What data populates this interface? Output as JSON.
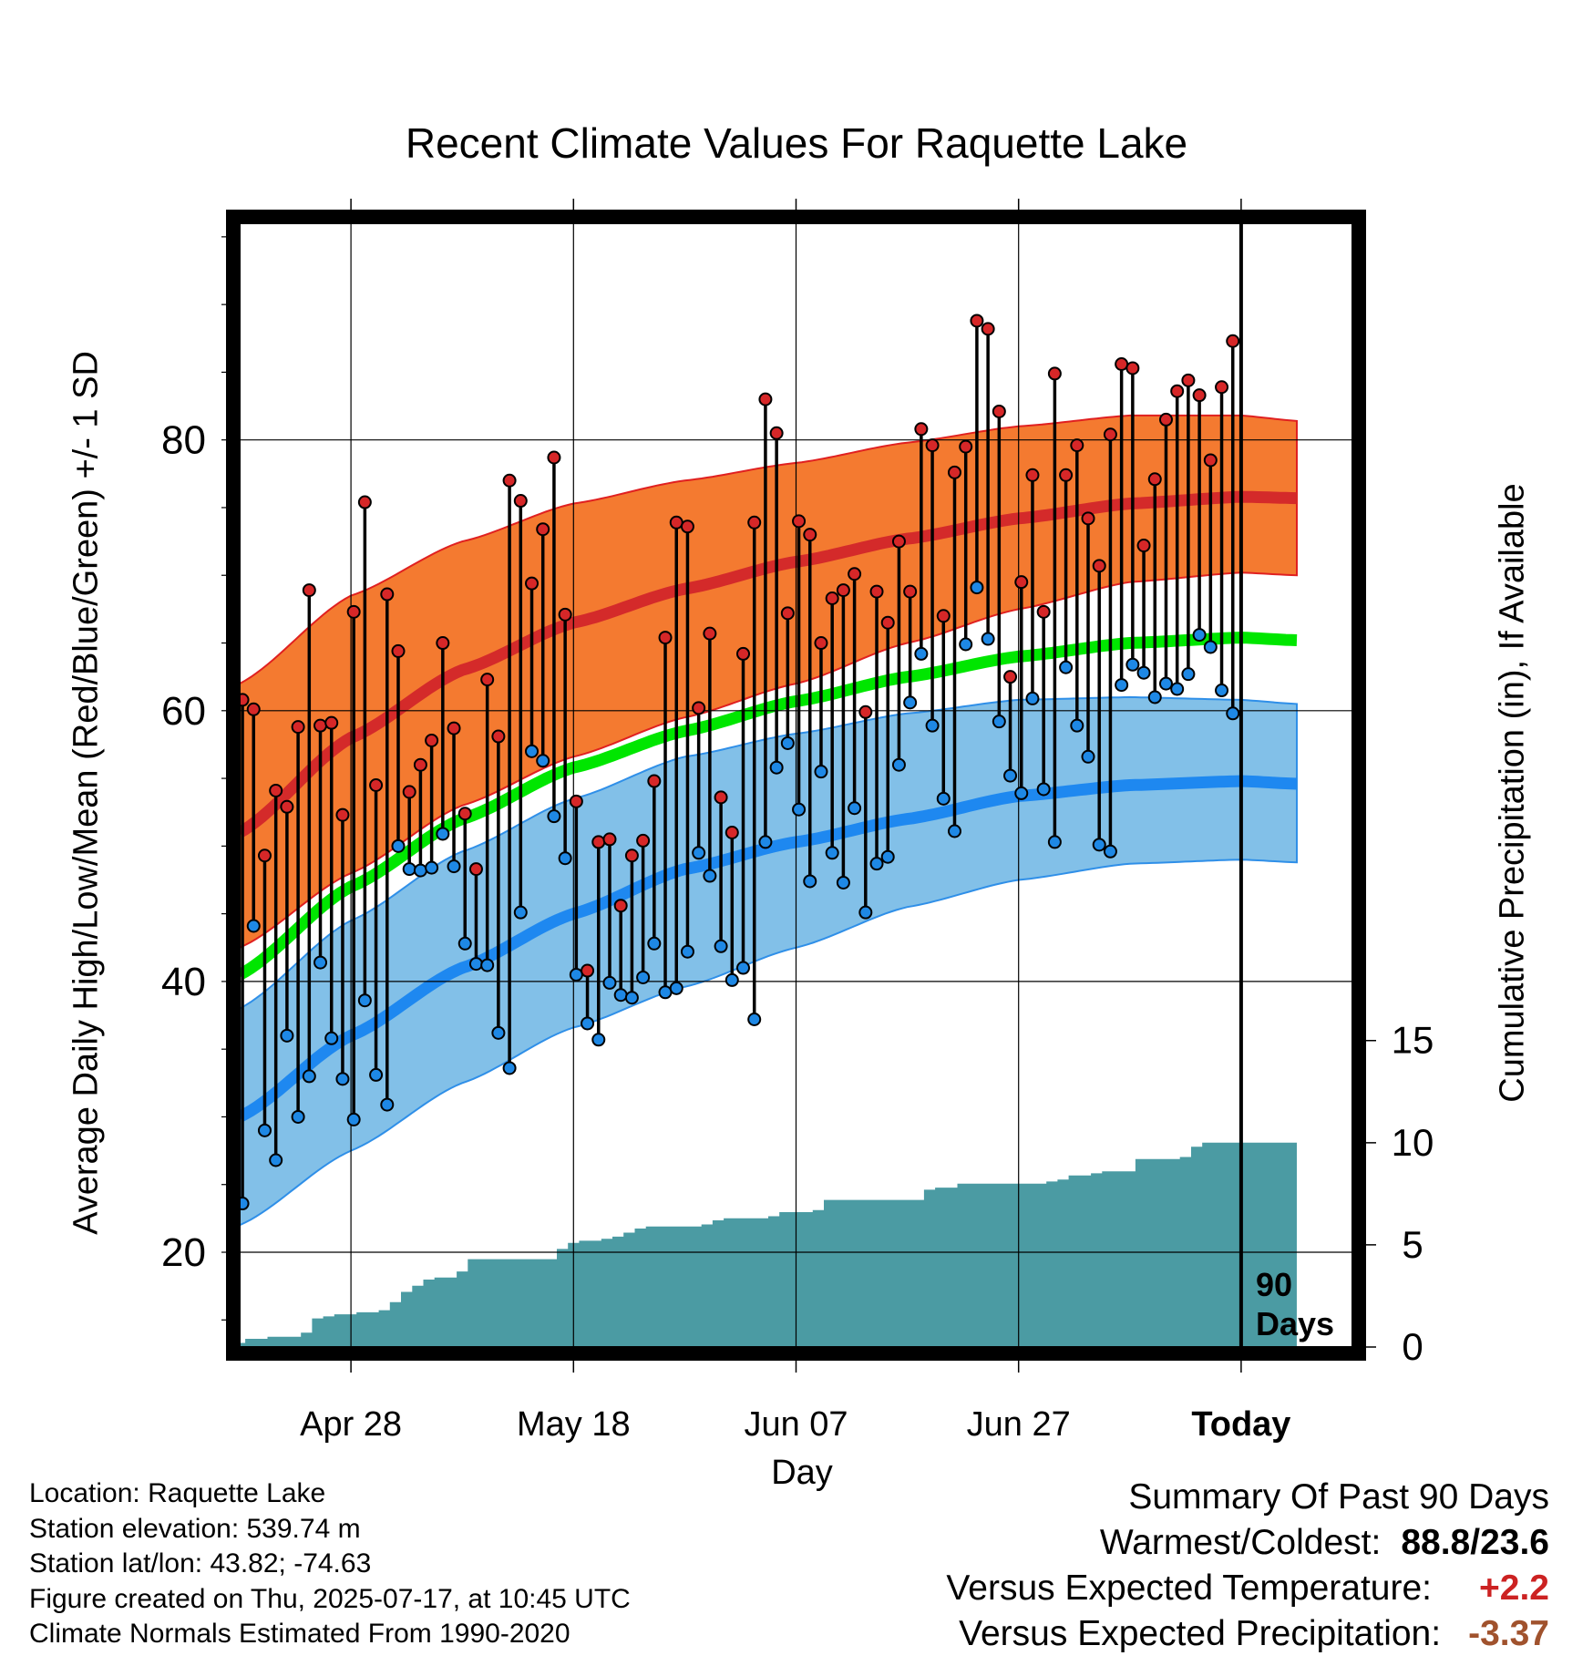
{
  "chart_data": {
    "type": "line",
    "title": "Recent Climate Values For Raquette Lake",
    "xlabel": "Day",
    "ylabel": "Average Daily High/Low/Mean (Red/Blue/Green) +/- 1 SD",
    "y2label": "Cumulative Precipitation (in), If Available",
    "xlim": [
      0,
      100
    ],
    "ylim": [
      13,
      96
    ],
    "y2lim": [
      0,
      55
    ],
    "x_ticks": [
      {
        "day": 10,
        "label": "Apr 28"
      },
      {
        "day": 30,
        "label": "May 18"
      },
      {
        "day": 50,
        "label": "Jun 07"
      },
      {
        "day": 70,
        "label": "Jun 27"
      },
      {
        "day": 90,
        "label": "Today"
      }
    ],
    "y_ticks": [
      20,
      40,
      60,
      80
    ],
    "y2_ticks": [
      0,
      5,
      10,
      15
    ],
    "grid": true,
    "today_day": 90,
    "today_label": [
      "90",
      "Days"
    ],
    "normals": {
      "day": [
        0,
        10,
        20,
        30,
        40,
        50,
        60,
        70,
        80,
        90,
        95
      ],
      "high_mean": [
        51,
        58,
        63,
        66.5,
        69,
        71,
        72.7,
        74.2,
        75.3,
        75.8,
        75.7
      ],
      "high_sd_upper": [
        62,
        68.5,
        72.5,
        75.3,
        77,
        78.3,
        79.8,
        81,
        81.8,
        81.8,
        81.4
      ],
      "high_sd_lower": [
        42.5,
        48,
        53,
        56.6,
        59.5,
        62,
        65,
        67.5,
        69.5,
        70.2,
        70
      ],
      "mean": [
        40.5,
        47,
        52,
        55.8,
        58.5,
        60.7,
        62.5,
        64,
        65,
        65.4,
        65.2
      ],
      "low_mean": [
        30,
        36,
        41,
        45,
        48.3,
        50.3,
        52,
        53.7,
        54.5,
        54.8,
        54.6
      ],
      "low_sd_upper": [
        38,
        44.5,
        49.6,
        53.5,
        56.6,
        58.3,
        59.8,
        60.8,
        61,
        60.8,
        60.5
      ],
      "low_sd_lower": [
        22,
        27.5,
        32.5,
        36.6,
        39.6,
        42.5,
        45.5,
        47.5,
        48.7,
        49,
        48.8
      ]
    },
    "series": [
      {
        "name": "High",
        "color": "#d62728",
        "x": [
          0,
          1,
          2,
          3,
          4,
          5,
          6,
          7,
          8,
          9,
          10,
          11,
          12,
          13,
          14,
          15,
          16,
          17,
          18,
          19,
          20,
          21,
          22,
          23,
          24,
          25,
          26,
          27,
          28,
          29,
          30,
          31,
          32,
          33,
          34,
          35,
          36,
          37,
          38,
          39,
          40,
          41,
          42,
          43,
          44,
          45,
          46,
          47,
          48,
          49,
          50,
          51,
          52,
          53,
          54,
          55,
          56,
          57,
          58,
          59,
          60,
          61,
          62,
          63,
          64,
          65,
          66,
          67,
          68,
          69,
          70,
          71,
          72,
          73,
          74,
          75,
          76,
          77,
          78,
          79,
          80,
          81,
          82,
          83,
          84,
          85,
          86,
          87,
          88,
          89
        ],
        "values": [
          60.8,
          60.1,
          49.3,
          54.1,
          52.9,
          58.8,
          68.9,
          58.9,
          59.1,
          52.3,
          67.3,
          75.4,
          54.5,
          68.6,
          64.4,
          54.0,
          56.0,
          57.8,
          65.0,
          58.7,
          52.4,
          48.3,
          62.3,
          58.1,
          77.0,
          75.5,
          69.4,
          73.4,
          78.7,
          67.1,
          53.3,
          40.8,
          50.3,
          50.5,
          45.6,
          49.3,
          50.4,
          54.8,
          65.4,
          73.9,
          73.6,
          60.2,
          65.7,
          53.6,
          51.0,
          64.2,
          73.9,
          83.0,
          80.5,
          67.2,
          74.0,
          73.0,
          65.0,
          68.3,
          68.9,
          70.1,
          59.9,
          68.8,
          66.5,
          72.5,
          68.8,
          80.8,
          79.6,
          67.0,
          77.6,
          79.5,
          88.8,
          88.2,
          82.1,
          62.5,
          69.5,
          77.4,
          67.3,
          84.9,
          77.4,
          79.6,
          74.2,
          70.7,
          80.4,
          85.6,
          85.3,
          72.2,
          77.1,
          81.5,
          83.6,
          84.4,
          83.3,
          78.5,
          83.9,
          87.3
        ]
      },
      {
        "name": "Low",
        "color": "#1e88e5",
        "x": [
          0,
          1,
          2,
          3,
          4,
          5,
          6,
          7,
          8,
          9,
          10,
          11,
          12,
          13,
          14,
          15,
          16,
          17,
          18,
          19,
          20,
          21,
          22,
          23,
          24,
          25,
          26,
          27,
          28,
          29,
          30,
          31,
          32,
          33,
          34,
          35,
          36,
          37,
          38,
          39,
          40,
          41,
          42,
          43,
          44,
          45,
          46,
          47,
          48,
          49,
          50,
          51,
          52,
          53,
          54,
          55,
          56,
          57,
          58,
          59,
          60,
          61,
          62,
          63,
          64,
          65,
          66,
          67,
          68,
          69,
          70,
          71,
          72,
          73,
          74,
          75,
          76,
          77,
          78,
          79,
          80,
          81,
          82,
          83,
          84,
          85,
          86,
          87,
          88,
          89
        ],
        "values": [
          23.6,
          44.1,
          29.0,
          26.8,
          36.0,
          30.0,
          33.0,
          41.4,
          35.8,
          32.8,
          29.8,
          38.6,
          33.1,
          30.9,
          50.0,
          48.3,
          48.2,
          48.4,
          50.9,
          48.5,
          42.8,
          41.3,
          41.2,
          36.2,
          33.6,
          45.1,
          57.0,
          56.3,
          52.2,
          49.1,
          40.5,
          36.9,
          35.7,
          39.9,
          39.0,
          38.8,
          40.3,
          42.8,
          39.2,
          39.5,
          42.2,
          49.5,
          47.8,
          42.6,
          40.1,
          41.0,
          37.2,
          50.3,
          55.8,
          57.6,
          52.7,
          47.4,
          55.5,
          49.5,
          47.3,
          52.8,
          45.1,
          48.7,
          49.2,
          56.0,
          60.6,
          64.2,
          58.9,
          53.5,
          51.1,
          64.9,
          69.1,
          65.3,
          59.2,
          55.2,
          53.9,
          60.9,
          54.2,
          50.3,
          63.2,
          58.9,
          56.6,
          50.1,
          49.6,
          61.9,
          63.4,
          62.8,
          61.0,
          62.0,
          61.6,
          62.7,
          65.6,
          64.7,
          61.5,
          59.8
        ]
      },
      {
        "name": "Cumulative Precipitation",
        "color": "#4b9ba3",
        "axis": "right",
        "x": [
          0,
          1,
          2,
          3,
          4,
          5,
          6,
          7,
          8,
          9,
          10,
          11,
          12,
          13,
          14,
          15,
          16,
          17,
          18,
          19,
          20,
          21,
          22,
          23,
          24,
          25,
          26,
          27,
          28,
          29,
          30,
          31,
          32,
          33,
          34,
          35,
          36,
          37,
          38,
          39,
          40,
          41,
          42,
          43,
          44,
          45,
          46,
          47,
          48,
          49,
          50,
          51,
          52,
          53,
          54,
          55,
          56,
          57,
          58,
          59,
          60,
          61,
          62,
          63,
          64,
          65,
          66,
          67,
          68,
          69,
          70,
          71,
          72,
          73,
          74,
          75,
          76,
          77,
          78,
          79,
          80,
          81,
          82,
          83,
          84,
          85,
          86,
          87,
          88,
          89,
          90,
          91,
          92,
          93,
          94,
          95
        ],
        "values": [
          0.2,
          0.4,
          0.4,
          0.5,
          0.5,
          0.5,
          0.7,
          1.4,
          1.5,
          1.6,
          1.6,
          1.7,
          1.7,
          1.8,
          2.2,
          2.7,
          3.0,
          3.3,
          3.4,
          3.4,
          3.7,
          4.3,
          4.3,
          4.3,
          4.3,
          4.3,
          4.3,
          4.3,
          4.3,
          4.8,
          5.1,
          5.2,
          5.2,
          5.3,
          5.4,
          5.6,
          5.8,
          5.9,
          5.9,
          5.9,
          5.9,
          5.9,
          6.0,
          6.2,
          6.3,
          6.3,
          6.3,
          6.3,
          6.4,
          6.6,
          6.6,
          6.6,
          6.7,
          7.2,
          7.2,
          7.2,
          7.2,
          7.2,
          7.2,
          7.2,
          7.2,
          7.2,
          7.7,
          7.8,
          7.8,
          8.0,
          8.0,
          8.0,
          8.0,
          8.0,
          8.0,
          8.0,
          8.0,
          8.1,
          8.2,
          8.4,
          8.4,
          8.5,
          8.6,
          8.6,
          8.6,
          9.2,
          9.2,
          9.2,
          9.2,
          9.3,
          9.8,
          10.0,
          10.0,
          10.0,
          10.0,
          10.0,
          10.0,
          10.0,
          10.0,
          10.0
        ]
      }
    ]
  },
  "footer": {
    "location": "Location: Raquette Lake",
    "elevation": "Station elevation: 539.74 m",
    "latlon": "Station lat/lon: 43.82; -74.63",
    "created": "Figure created on Thu, 2025-07-17, at 10:45 UTC",
    "normals": "Climate Normals Estimated From 1990-2020"
  },
  "summary": {
    "heading": "Summary Of Past 90 Days",
    "warm_cold_label": "Warmest/Coldest:",
    "warm_cold_value": "88.8/23.6",
    "temp_label": "Versus Expected Temperature:",
    "temp_value": "+2.2",
    "temp_color": "#cc2222",
    "precip_label": "Versus Expected Precipitation:",
    "precip_value": "-3.37",
    "precip_color": "#a0522d"
  }
}
